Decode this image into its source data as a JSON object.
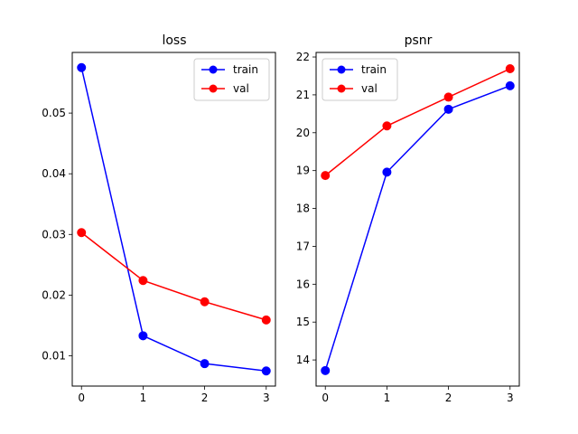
{
  "chart_data": [
    {
      "type": "line",
      "title": "loss",
      "xlabel": "",
      "ylabel": "",
      "x": [
        0,
        1,
        2,
        3
      ],
      "xticks": [
        "0",
        "1",
        "2",
        "3"
      ],
      "xlim": [
        -0.15,
        3.15
      ],
      "yticks": [
        "0.01",
        "0.02",
        "0.03",
        "0.04",
        "0.05"
      ],
      "ytick_values": [
        0.01,
        0.02,
        0.03,
        0.04,
        0.05
      ],
      "ylim": [
        0.005,
        0.06
      ],
      "legend": "upper right",
      "series": [
        {
          "name": "train",
          "color": "#0000ff",
          "values": [
            0.0575,
            0.0133,
            0.0087,
            0.0075
          ]
        },
        {
          "name": "val",
          "color": "#ff0000",
          "values": [
            0.0303,
            0.0224,
            0.0189,
            0.0159
          ]
        }
      ]
    },
    {
      "type": "line",
      "title": "psnr",
      "xlabel": "",
      "ylabel": "",
      "x": [
        0,
        1,
        2,
        3
      ],
      "xticks": [
        "0",
        "1",
        "2",
        "3"
      ],
      "xlim": [
        -0.15,
        3.15
      ],
      "yticks": [
        "14",
        "15",
        "16",
        "17",
        "18",
        "19",
        "20",
        "21",
        "22"
      ],
      "ytick_values": [
        14,
        15,
        16,
        17,
        18,
        19,
        20,
        21,
        22
      ],
      "ylim": [
        13.31,
        22.12
      ],
      "legend": "upper left",
      "series": [
        {
          "name": "train",
          "color": "#0000ff",
          "values": [
            13.72,
            18.96,
            20.62,
            21.24
          ]
        },
        {
          "name": "val",
          "color": "#ff0000",
          "values": [
            18.87,
            20.18,
            20.94,
            21.69
          ]
        }
      ]
    }
  ]
}
